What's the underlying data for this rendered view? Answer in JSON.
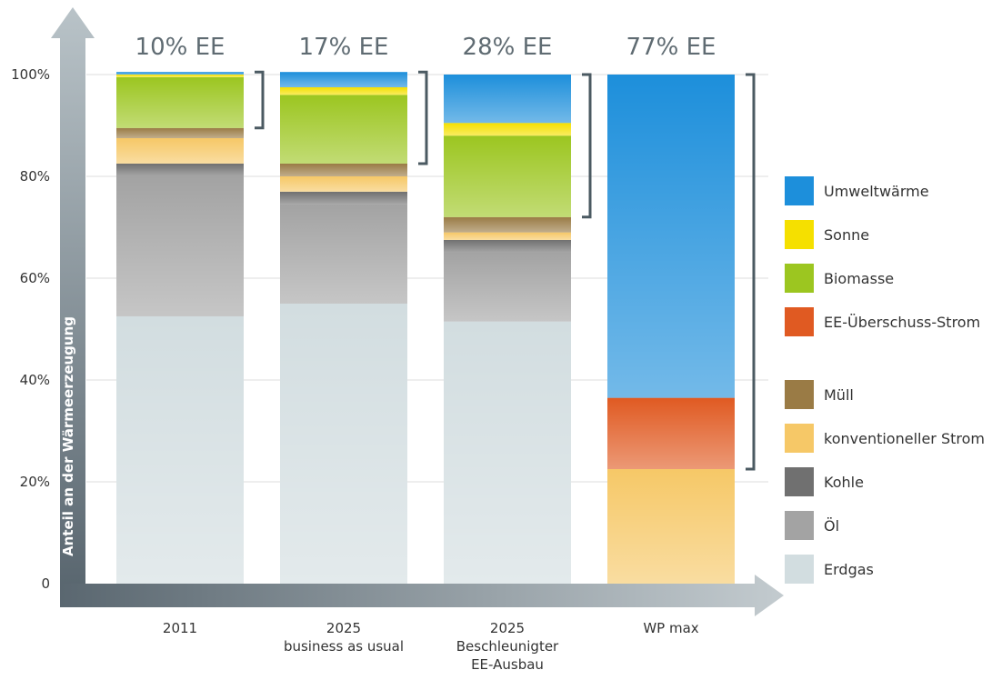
{
  "chart_data": {
    "type": "bar",
    "stacked": true,
    "ylabel": "Anteil an der Wärmeerzeugung",
    "y_ticks": [
      "0",
      "20%",
      "40%",
      "60%",
      "80%",
      "100%"
    ],
    "ylim": [
      0,
      100
    ],
    "categories": [
      {
        "label": [
          "2011"
        ],
        "ee_label": "10% EE"
      },
      {
        "label": [
          "2025",
          "business as usual"
        ],
        "ee_label": "17% EE"
      },
      {
        "label": [
          "2025",
          "Beschleunigter",
          "EE-Ausbau"
        ],
        "ee_label": "28% EE"
      },
      {
        "label": [
          "WP max"
        ],
        "ee_label": "77% EE"
      }
    ],
    "series": [
      {
        "name": "Erdgas",
        "color": "#d2dde0",
        "values": [
          52.5,
          55,
          51.5,
          0
        ]
      },
      {
        "name": "Öl",
        "color": "#a3a3a3",
        "values": [
          27.5,
          19.5,
          13.5,
          0
        ]
      },
      {
        "name": "Kohle",
        "color": "#707070",
        "values": [
          2.5,
          2.5,
          2.5,
          0
        ]
      },
      {
        "name": "konventioneller Strom",
        "color": "#f6c867",
        "values": [
          5,
          3,
          1.5,
          22.5
        ]
      },
      {
        "name": "Müll",
        "color": "#9a7b45",
        "values": [
          2,
          2.5,
          3,
          0
        ]
      },
      {
        "name": "EE-Überschuss-Strom",
        "color": "#e05a22",
        "values": [
          0,
          0,
          0,
          14
        ]
      },
      {
        "name": "Biomasse",
        "color": "#9cc620",
        "values": [
          10,
          13.5,
          16,
          0
        ]
      },
      {
        "name": "Sonne",
        "color": "#f5e000",
        "values": [
          0.5,
          1.5,
          2.5,
          0
        ]
      },
      {
        "name": "Umweltwärme",
        "color": "#1d8fdb",
        "values": [
          0.5,
          3,
          9.5,
          63.5
        ]
      }
    ],
    "legend": {
      "placement": "right",
      "items_top": [
        "Umweltwärme",
        "Sonne",
        "Biomasse",
        "EE-Überschuss-Strom"
      ],
      "items_bottom": [
        "Müll",
        "konventioneller Strom",
        "Kohle",
        "Öl",
        "Erdgas"
      ]
    },
    "grid": true
  }
}
